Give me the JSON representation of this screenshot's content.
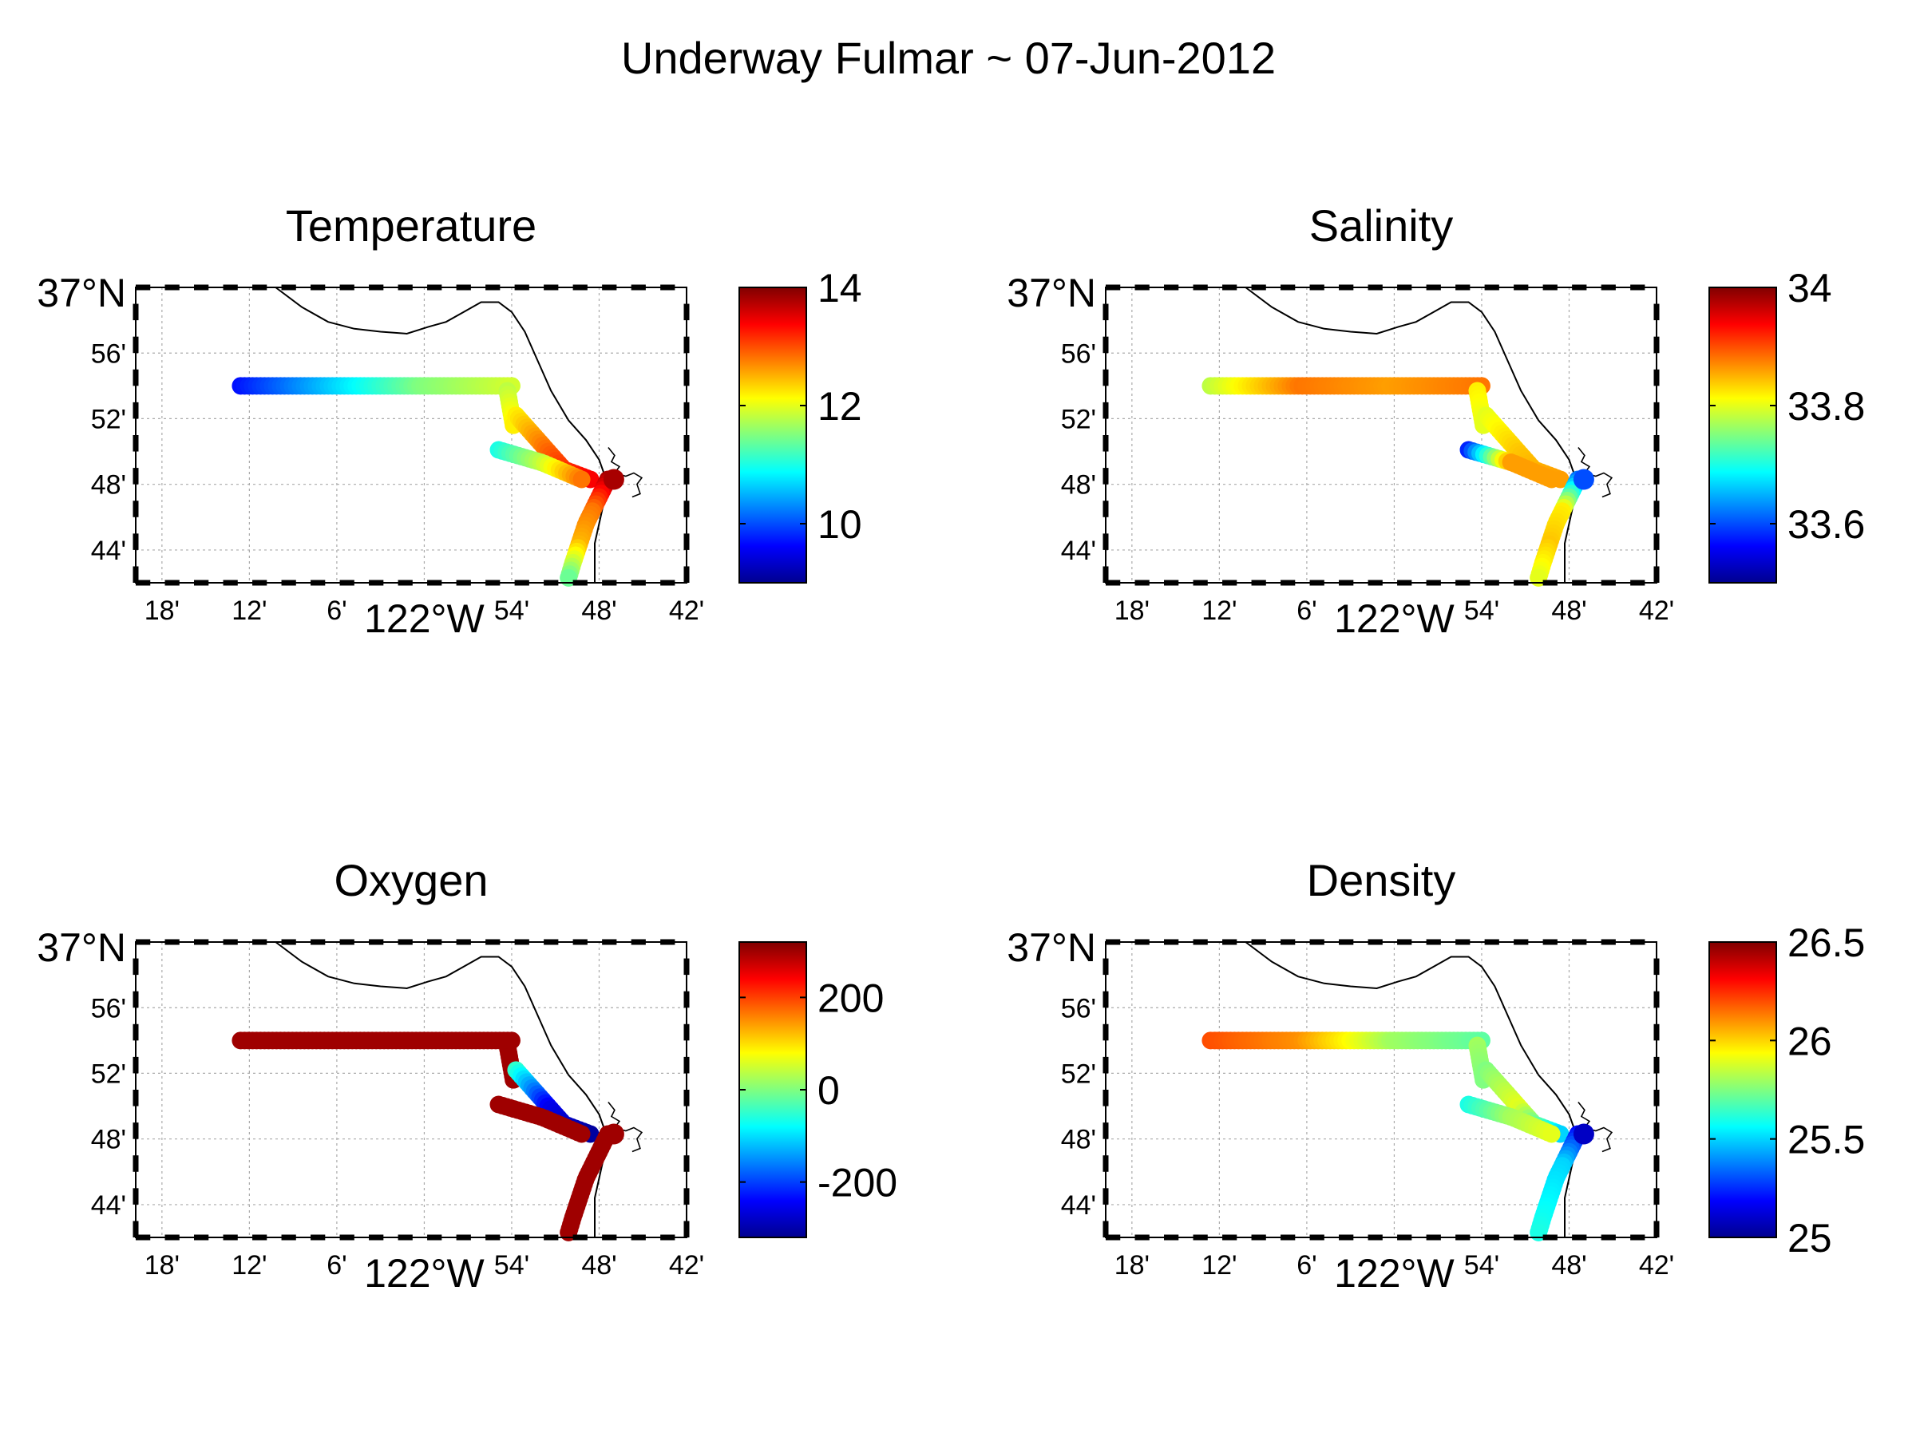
{
  "figure": {
    "suptitle": "Underway Fulmar ~ 07-Jun-2012"
  },
  "map": {
    "lon_ticks": [
      {
        "lon": -122.3,
        "label": "18'"
      },
      {
        "lon": -122.2,
        "label": "12'"
      },
      {
        "lon": -122.1,
        "label": "6'"
      },
      {
        "lon": -122.0,
        "label": "122°W",
        "major": true
      },
      {
        "lon": -121.9,
        "label": "54'"
      },
      {
        "lon": -121.8,
        "label": "48'"
      },
      {
        "lon": -121.7,
        "label": "42'"
      }
    ],
    "lat_ticks": [
      {
        "lat": 37.0,
        "label": "37°N",
        "major": true
      },
      {
        "lat": 36.9333,
        "label": "56'"
      },
      {
        "lat": 36.8667,
        "label": "52'"
      },
      {
        "lat": 36.8,
        "label": "48'"
      },
      {
        "lat": 36.7333,
        "label": "44'"
      }
    ],
    "grid": true,
    "coastline_color": "#000000"
  },
  "chart_data": [
    {
      "type": "scatter",
      "title": "Temperature",
      "colorbar": {
        "range": [
          9,
          14
        ],
        "ticks": [
          {
            "v": 10,
            "label": "10"
          },
          {
            "v": 12,
            "label": "12"
          },
          {
            "v": 14,
            "label": "14"
          }
        ]
      },
      "track_values": {
        "west_leg": [
          9.7,
          10.6,
          11.5,
          11.9
        ],
        "down_leg": [
          11.8,
          12.2
        ],
        "diag_leg": [
          12.2,
          12.9,
          13.4
        ],
        "short_leg": [
          11.0,
          11.8,
          12.8
        ],
        "south_leg": [
          13.8,
          12.8,
          12.5,
          11.4
        ],
        "harbor": 13.8
      }
    },
    {
      "type": "scatter",
      "title": "Salinity",
      "colorbar": {
        "range": [
          33.5,
          34.0
        ],
        "ticks": [
          {
            "v": 33.6,
            "label": "33.6"
          },
          {
            "v": 33.8,
            "label": "33.8"
          },
          {
            "v": 34.0,
            "label": "34"
          }
        ]
      },
      "track_values": {
        "west_leg": [
          33.78,
          33.88,
          33.86,
          33.88
        ],
        "down_leg": [
          33.82,
          33.8
        ],
        "diag_leg": [
          33.8,
          33.84,
          33.86
        ],
        "short_leg": [
          33.58,
          33.86,
          33.86
        ],
        "south_leg": [
          33.62,
          33.82,
          33.84,
          33.8
        ],
        "harbor": 33.6
      }
    },
    {
      "type": "scatter",
      "title": "Oxygen",
      "colorbar": {
        "range": [
          -320,
          320
        ],
        "ticks": [
          {
            "v": -200,
            "label": "-200"
          },
          {
            "v": 0,
            "label": "0"
          },
          {
            "v": 200,
            "label": "200"
          }
        ]
      },
      "track_values": {
        "west_leg": [
          300,
          300,
          300,
          300
        ],
        "down_leg": [
          300,
          300
        ],
        "diag_leg": [
          -50,
          -250,
          -300
        ],
        "short_leg": [
          300,
          300,
          300
        ],
        "south_leg": [
          300,
          300,
          300,
          300
        ],
        "harbor": 300
      }
    },
    {
      "type": "scatter",
      "title": "Density",
      "colorbar": {
        "range": [
          25.0,
          26.5
        ],
        "ticks": [
          {
            "v": 25,
            "label": "25"
          },
          {
            "v": 25.5,
            "label": "25.5"
          },
          {
            "v": 26,
            "label": "26"
          },
          {
            "v": 26.5,
            "label": "26.5"
          }
        ]
      },
      "track_values": {
        "west_leg": [
          26.2,
          26.1,
          25.8,
          25.7
        ],
        "down_leg": [
          25.8,
          25.75
        ],
        "diag_leg": [
          25.75,
          25.9,
          25.5
        ],
        "short_leg": [
          25.6,
          25.8,
          25.9
        ],
        "south_leg": [
          25.2,
          25.5,
          25.55,
          25.6
        ],
        "harbor": 25.1
      }
    }
  ]
}
